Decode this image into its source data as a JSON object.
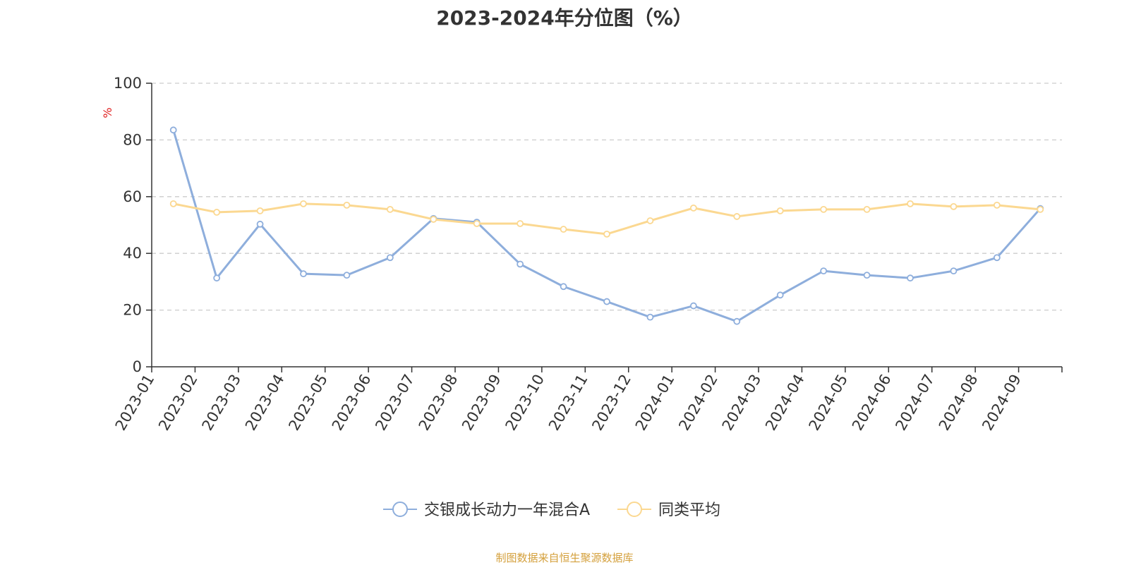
{
  "chart_data": {
    "type": "line",
    "title": "2023-2024年分位图（%）",
    "ylabel": "%",
    "ylim": [
      0,
      100
    ],
    "yticks": [
      0,
      20,
      40,
      60,
      80,
      100
    ],
    "grid": true,
    "legend_position": "bottom-center",
    "categories": [
      "2023-01",
      "2023-02",
      "2023-03",
      "2023-04",
      "2023-05",
      "2023-06",
      "2023-07",
      "2023-08",
      "2023-09",
      "2023-10",
      "2023-11",
      "2023-12",
      "2024-01",
      "2024-02",
      "2024-03",
      "2024-04",
      "2024-05",
      "2024-06",
      "2024-07",
      "2024-08",
      "2024-09"
    ],
    "series": [
      {
        "name": "交银成长动力一年混合A",
        "color": "#8eaedc",
        "values": [
          83.5,
          31.3,
          50.3,
          32.8,
          32.3,
          38.5,
          52.3,
          51.0,
          36.2,
          28.3,
          23.0,
          17.5,
          21.5,
          16.0,
          25.3,
          33.8,
          32.3,
          31.3,
          33.8,
          38.5,
          55.8
        ]
      },
      {
        "name": "同类平均",
        "color": "#fbd891",
        "values": [
          57.5,
          54.5,
          55.0,
          57.5,
          57.0,
          55.5,
          52.0,
          50.5,
          50.5,
          48.5,
          46.8,
          51.5,
          56.0,
          53.0,
          55.0,
          55.5,
          55.5,
          57.5,
          56.5,
          57.0,
          55.5
        ]
      }
    ],
    "source": "制图数据来自恒生聚源数据库",
    "colors": {
      "axis": "#333333",
      "grid": "#cccccc",
      "ylabel": "#e02020",
      "source": "#d4a03c"
    }
  }
}
